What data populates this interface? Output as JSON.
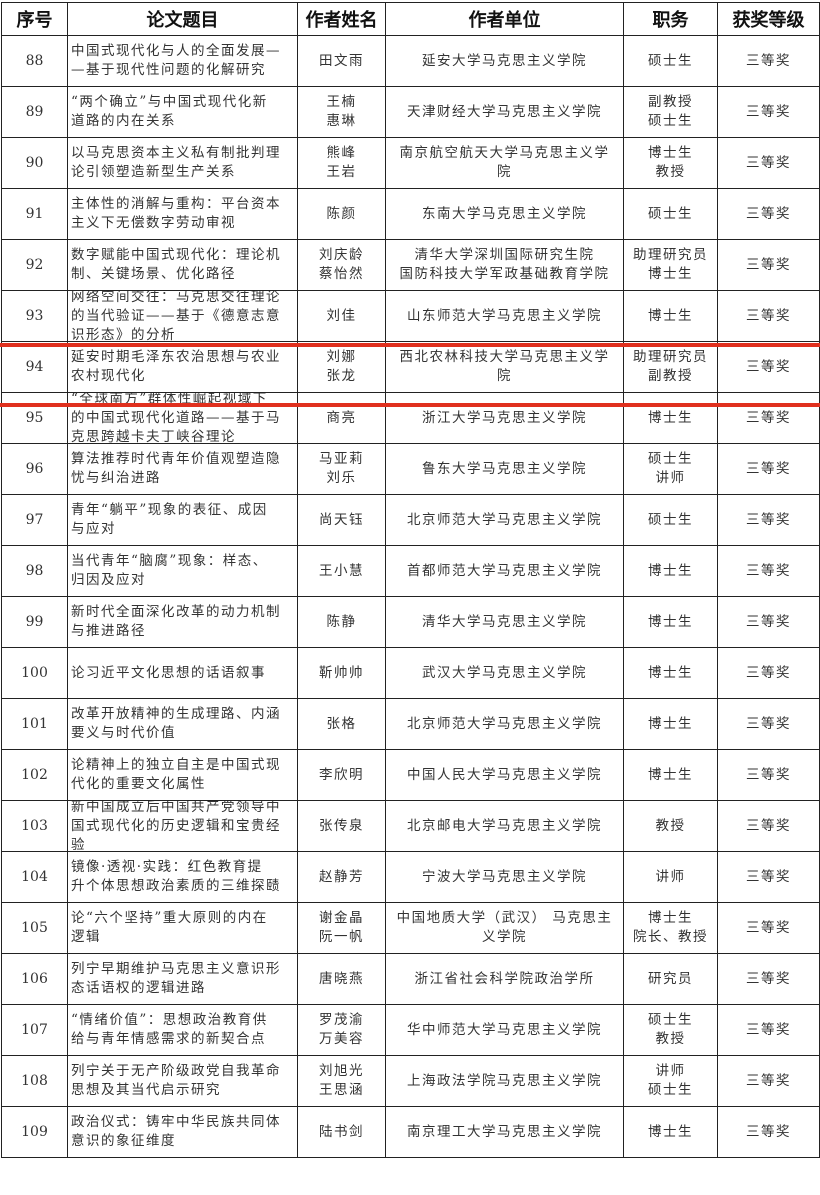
{
  "headers": [
    "序号",
    "论文题目",
    "作者姓名",
    "作者单位",
    "职务",
    "获奖等级"
  ],
  "highlight_color": "#e0301e",
  "rows": [
    [
      "88",
      "中国式现代化与人的全面发展—\n—基于现代性问题的化解研究",
      "田文雨",
      "延安大学马克思主义学院",
      "硕士生",
      "三等奖"
    ],
    [
      "89",
      "“两个确立”与中国式现代化新\n道路的内在关系",
      "王楠\n惠琳",
      "天津财经大学马克思主义学院",
      "副教授\n硕士生",
      "三等奖"
    ],
    [
      "90",
      "以马克思资本主义私有制批判理\n论引领塑造新型生产关系",
      "熊峰\n王岩",
      "南京航空航天大学马克思主义学\n院",
      "博士生\n教授",
      "三等奖"
    ],
    [
      "91",
      "主体性的消解与重构：平台资本\n主义下无偿数字劳动审视",
      "陈颜",
      "东南大学马克思主义学院",
      "硕士生",
      "三等奖"
    ],
    [
      "92",
      "数字赋能中国式现代化：理论机\n制、关键场景、优化路径",
      "刘庆龄\n蔡怡然",
      "清华大学深圳国际研究生院\n国防科技大学军政基础教育学院",
      "助理研究员\n博士生",
      "三等奖"
    ],
    [
      "93",
      "网络空间交往：马克思交往理论\n的当代验证——基于《德意志意\n识形态》的分析",
      "刘佳",
      "山东师范大学马克思主义学院",
      "博士生",
      "三等奖"
    ],
    [
      "94",
      "延安时期毛泽东农治思想与农业\n农村现代化",
      "刘娜\n张龙",
      "西北农林科技大学马克思主义学\n院",
      "助理研究员\n副教授",
      "三等奖"
    ],
    [
      "95",
      "“全球南方”群体性崛起视域下\n的中国式现代化道路——基于马\n克思跨越卡夫丁峡谷理论",
      "商亮",
      "浙江大学马克思主义学院",
      "博士生",
      "三等奖"
    ],
    [
      "96",
      "算法推荐时代青年价值观塑造隐\n忧与纠治进路",
      "马亚莉\n刘乐",
      "鲁东大学马克思主义学院",
      "硕士生\n讲师",
      "三等奖"
    ],
    [
      "97",
      "青年“躺平”现象的表征、成因\n与应对",
      "尚天钰",
      "北京师范大学马克思主义学院",
      "硕士生",
      "三等奖"
    ],
    [
      "98",
      "当代青年“脑腐”现象：样态、\n归因及应对",
      "王小慧",
      "首都师范大学马克思主义学院",
      "博士生",
      "三等奖"
    ],
    [
      "99",
      "新时代全面深化改革的动力机制\n与推进路径",
      "陈静",
      "清华大学马克思主义学院",
      "博士生",
      "三等奖"
    ],
    [
      "100",
      "论习近平文化思想的话语叙事",
      "靳帅帅",
      "武汉大学马克思主义学院",
      "博士生",
      "三等奖"
    ],
    [
      "101",
      "改革开放精神的生成理路、内涵\n要义与时代价值",
      "张格",
      "北京师范大学马克思主义学院",
      "博士生",
      "三等奖"
    ],
    [
      "102",
      "论精神上的独立自主是中国式现\n代化的重要文化属性",
      "李欣明",
      "中国人民大学马克思主义学院",
      "博士生",
      "三等奖"
    ],
    [
      "103",
      "新中国成立后中国共产党领导中\n国式现代化的历史逻辑和宝贵经\n验",
      "张传泉",
      "北京邮电大学马克思主义学院",
      "教授",
      "三等奖"
    ],
    [
      "104",
      "镜像·透视·实践：红色教育提\n升个体思想政治素质的三维探赜",
      "赵静芳",
      "宁波大学马克思主义学院",
      "讲师",
      "三等奖"
    ],
    [
      "105",
      "论“六个坚持”重大原则的内在\n逻辑",
      "谢金晶\n阮一帆",
      "中国地质大学（武汉） 马克思主\n义学院",
      "博士生\n院长、教授",
      "三等奖"
    ],
    [
      "106",
      "列宁早期维护马克思主义意识形\n态话语权的逻辑进路",
      "唐晓燕",
      "浙江省社会科学院政治学所",
      "研究员",
      "三等奖"
    ],
    [
      "107",
      "“情绪价值”：思想政治教育供\n给与青年情感需求的新契合点",
      "罗茂渝\n万美容",
      "华中师范大学马克思主义学院",
      "硕士生\n教授",
      "三等奖"
    ],
    [
      "108",
      "列宁关于无产阶级政党自我革命\n思想及其当代启示研究",
      "刘旭光\n王思涵",
      "上海政法学院马克思主义学院",
      "讲师\n硕士生",
      "三等奖"
    ],
    [
      "109",
      "政治仪式：铸牢中华民族共同体\n意识的象征维度",
      "陆书剑",
      "南京理工大学马克思主义学院",
      "博士生",
      "三等奖"
    ]
  ]
}
